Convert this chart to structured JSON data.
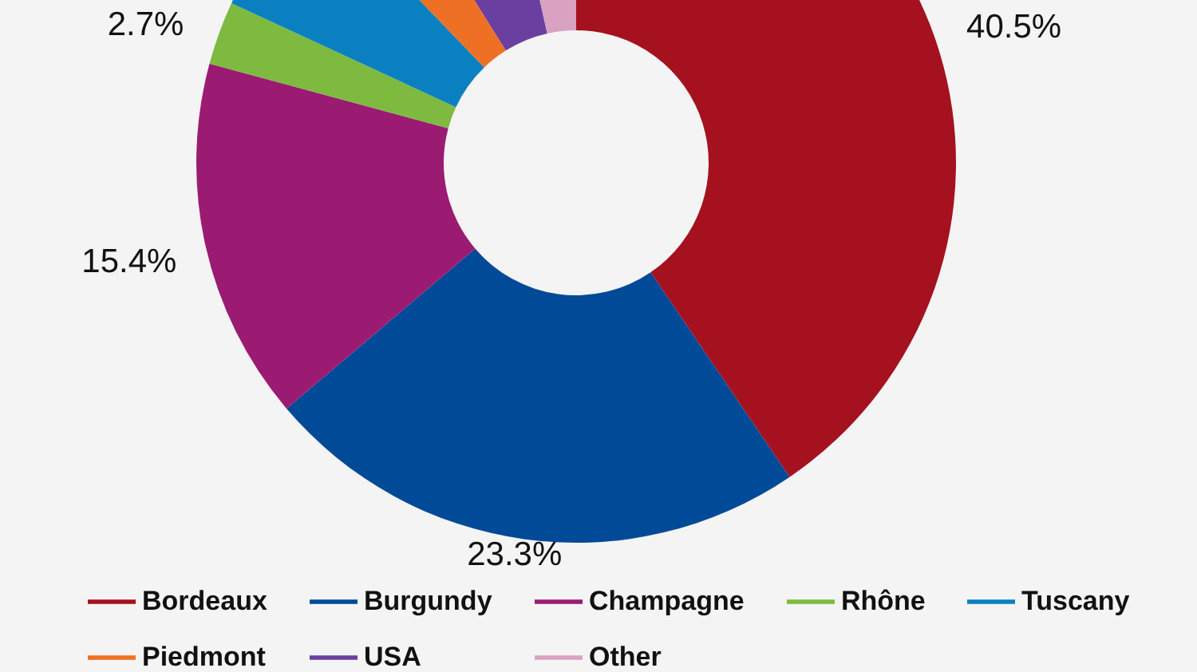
{
  "chart_data": {
    "type": "donut",
    "categories": [
      "Bordeaux",
      "Burgundy",
      "Champagne",
      "Rhône",
      "Tuscany",
      "Piedmont",
      "USA",
      "Other"
    ],
    "values": [
      40.5,
      23.3,
      15.4,
      2.7,
      5.9,
      3.3,
      5.4,
      3.5
    ],
    "colors": [
      "#a6111f",
      "#004a97",
      "#9b1b72",
      "#7dba3f",
      "#0a80c0",
      "#ee7024",
      "#6b3fa0",
      "#d9a2c0"
    ],
    "value_labels": [
      "40.5%",
      "23.3%",
      "15.4%",
      "2.7%",
      null,
      null,
      null,
      null
    ],
    "legend": "bottom"
  }
}
